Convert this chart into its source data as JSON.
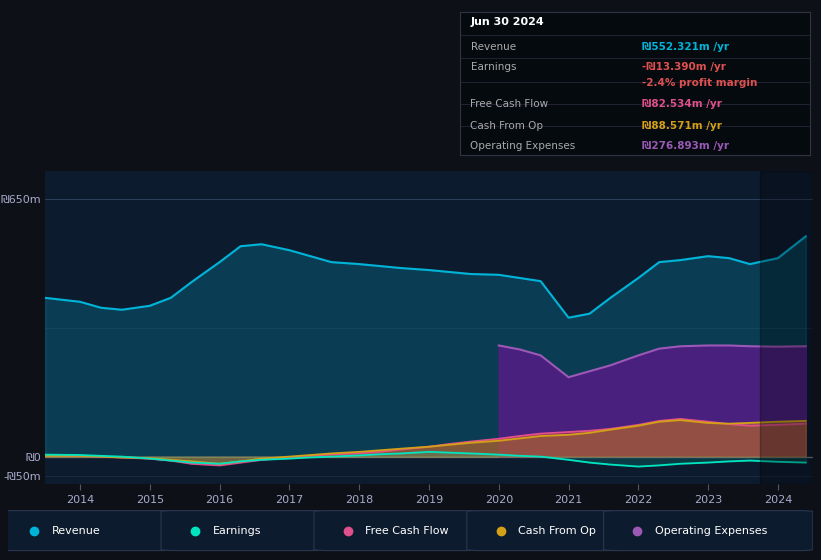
{
  "background_color": "#0d1117",
  "chart_bg": "#0d1b2e",
  "ylabel_top": "₪650m",
  "ylabel_zero": "₪0",
  "ylabel_neg": "-₪50m",
  "x_labels": [
    "2014",
    "2015",
    "2016",
    "2017",
    "2018",
    "2019",
    "2020",
    "2021",
    "2022",
    "2023",
    "2024"
  ],
  "legend": [
    {
      "label": "Revenue",
      "color": "#00b4d8"
    },
    {
      "label": "Earnings",
      "color": "#00e5c0"
    },
    {
      "label": "Free Cash Flow",
      "color": "#e0508a"
    },
    {
      "label": "Cash From Op",
      "color": "#d4a017"
    },
    {
      "label": "Operating Expenses",
      "color": "#9b59b6"
    }
  ],
  "tooltip": {
    "date": "Jun 30 2024",
    "rows": [
      {
        "label": "Revenue",
        "value": "₪552.321m /yr",
        "lcolor": "#aaaaaa",
        "vcolor": "#00b4d8"
      },
      {
        "label": "Earnings",
        "value": "-₪13.390m /yr",
        "lcolor": "#aaaaaa",
        "vcolor": "#e05050"
      },
      {
        "label": null,
        "value": "-2.4% profit margin",
        "lcolor": null,
        "vcolor": "#e05050"
      },
      {
        "label": "Free Cash Flow",
        "value": "₪82.534m /yr",
        "lcolor": "#aaaaaa",
        "vcolor": "#e0508a"
      },
      {
        "label": "Cash From Op",
        "value": "₪88.571m /yr",
        "lcolor": "#aaaaaa",
        "vcolor": "#d4a017"
      },
      {
        "label": "Operating Expenses",
        "value": "₪276.893m /yr",
        "lcolor": "#aaaaaa",
        "vcolor": "#9b59b6"
      }
    ]
  },
  "years": [
    2013.5,
    2014.0,
    2014.3,
    2014.6,
    2015.0,
    2015.3,
    2015.6,
    2016.0,
    2016.3,
    2016.6,
    2017.0,
    2017.3,
    2017.6,
    2018.0,
    2018.3,
    2018.6,
    2019.0,
    2019.3,
    2019.6,
    2020.0,
    2020.3,
    2020.6,
    2021.0,
    2021.3,
    2021.6,
    2022.0,
    2022.3,
    2022.6,
    2023.0,
    2023.3,
    2023.6,
    2024.0,
    2024.4
  ],
  "revenue": [
    400,
    390,
    375,
    370,
    380,
    400,
    440,
    490,
    530,
    535,
    520,
    505,
    490,
    485,
    480,
    475,
    470,
    465,
    460,
    458,
    450,
    442,
    350,
    360,
    400,
    450,
    490,
    495,
    505,
    500,
    485,
    500,
    555
  ],
  "earnings": [
    5,
    4,
    2,
    0,
    -5,
    -10,
    -15,
    -18,
    -12,
    -8,
    -5,
    -2,
    0,
    3,
    6,
    8,
    12,
    10,
    8,
    5,
    2,
    0,
    -8,
    -15,
    -20,
    -25,
    -22,
    -18,
    -15,
    -12,
    -10,
    -13,
    -15
  ],
  "fcf": [
    3,
    2,
    0,
    -2,
    -5,
    -10,
    -18,
    -22,
    -15,
    -8,
    -2,
    2,
    5,
    8,
    12,
    18,
    25,
    32,
    38,
    45,
    52,
    58,
    62,
    65,
    70,
    80,
    90,
    95,
    88,
    82,
    78,
    80,
    83
  ],
  "cash_from_op": [
    2,
    2,
    0,
    -2,
    -4,
    -8,
    -12,
    -18,
    -12,
    -5,
    0,
    4,
    8,
    12,
    16,
    20,
    25,
    30,
    35,
    40,
    46,
    52,
    55,
    60,
    68,
    78,
    88,
    92,
    85,
    83,
    85,
    88,
    90
  ],
  "op_expenses": [
    0,
    0,
    0,
    0,
    0,
    0,
    0,
    0,
    0,
    0,
    0,
    0,
    0,
    0,
    0,
    0,
    0,
    0,
    0,
    280,
    270,
    255,
    200,
    215,
    230,
    255,
    272,
    278,
    280,
    280,
    278,
    277,
    278
  ]
}
